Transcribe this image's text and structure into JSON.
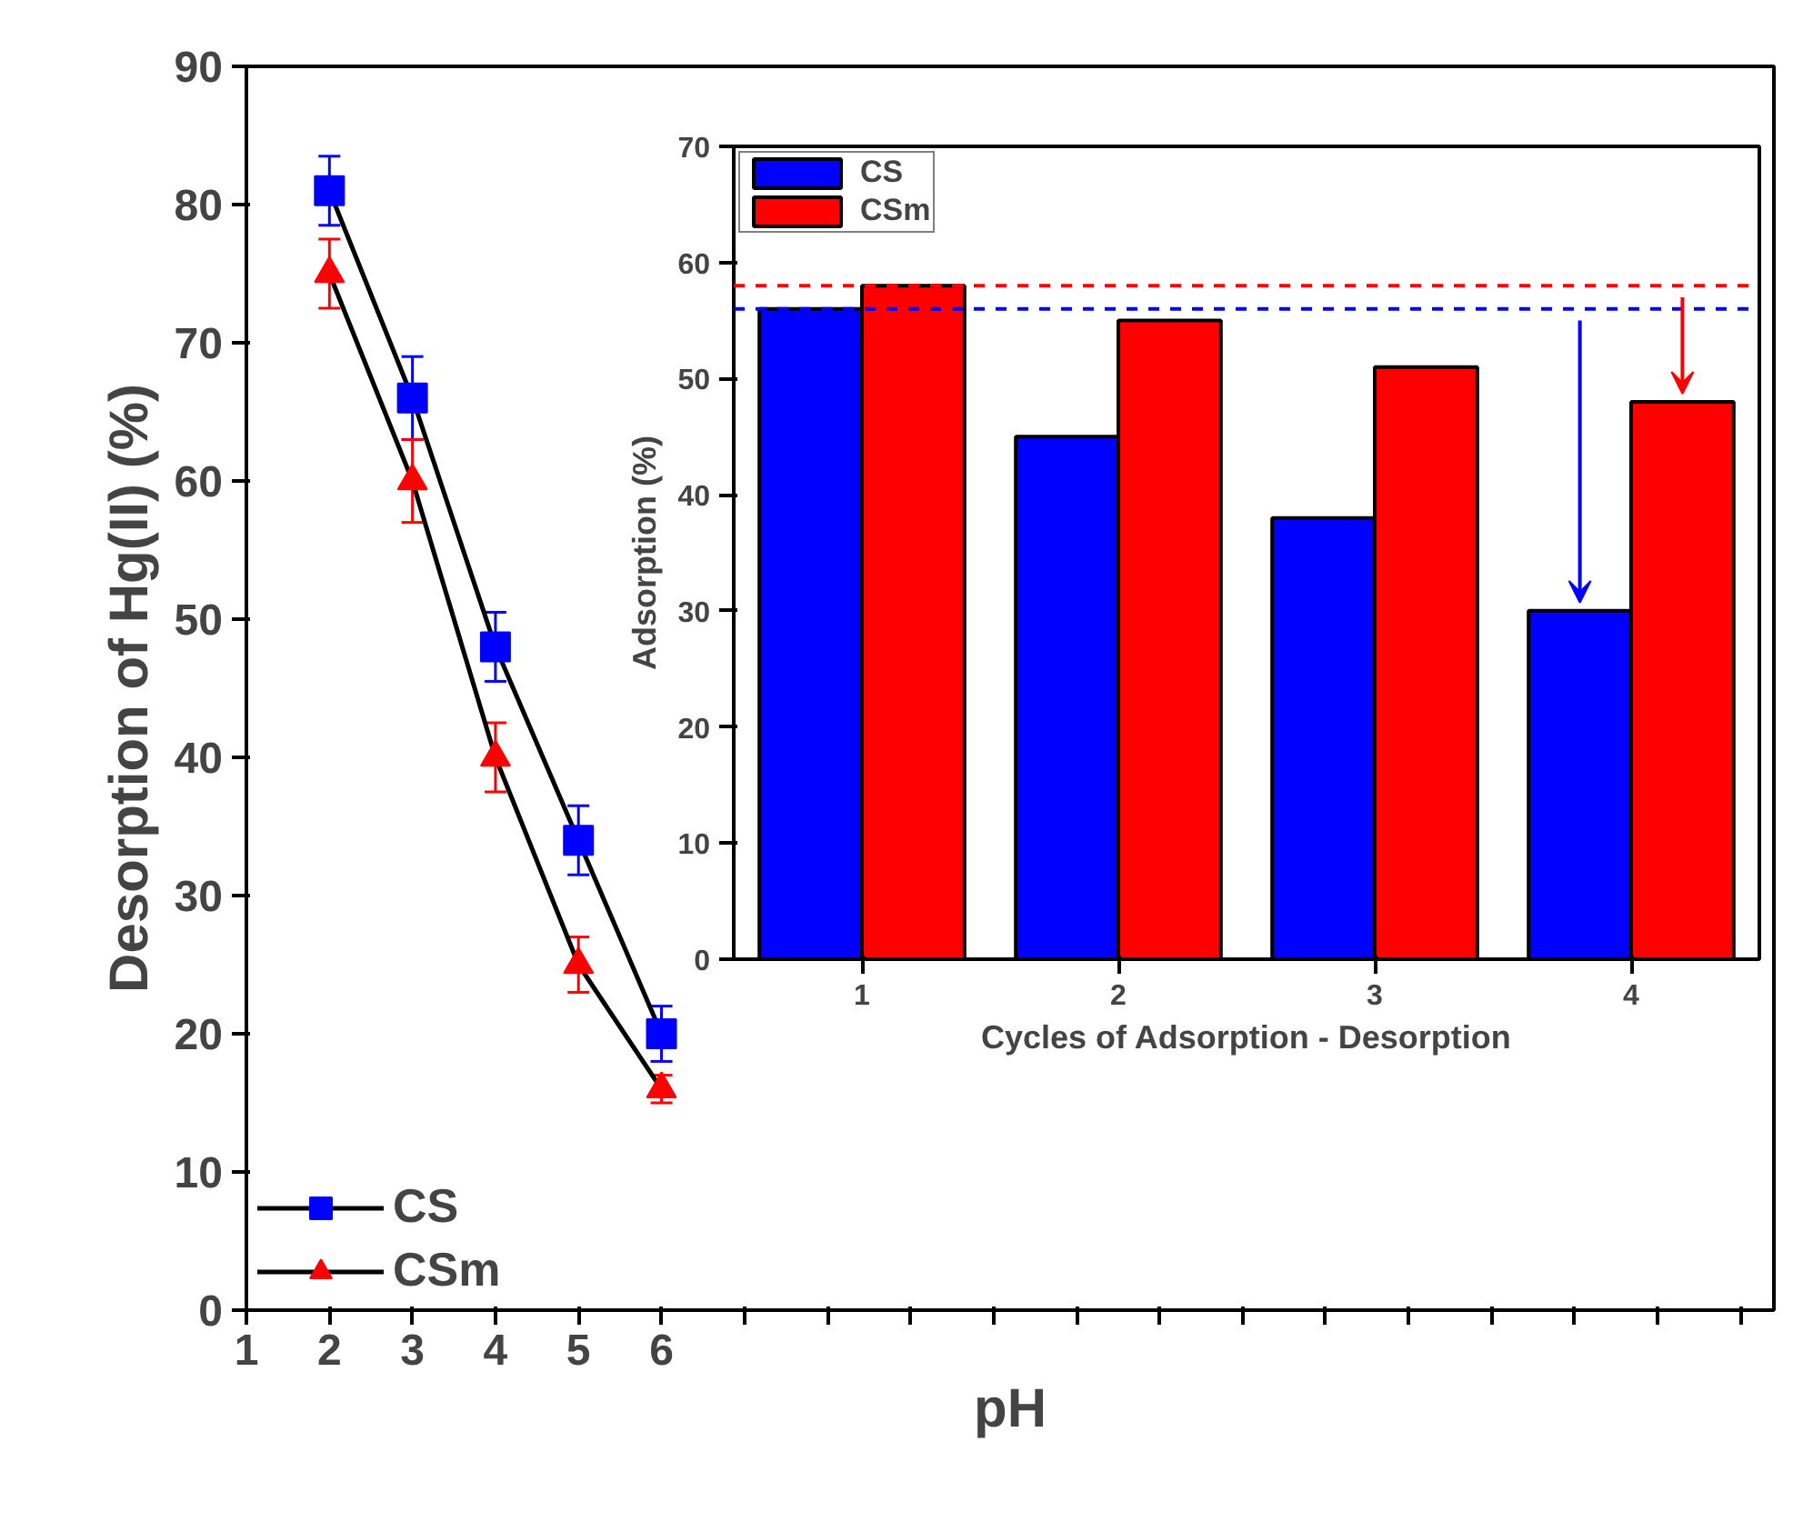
{
  "chart_data": [
    {
      "type": "line",
      "xlabel": "pH",
      "ylabel": "Desorption of Hg(II) (%)",
      "x": [
        2,
        3,
        4,
        5,
        6
      ],
      "xlim": [
        1,
        19.4
      ],
      "xticks": [
        1,
        2,
        3,
        4,
        5,
        6,
        {
          "value": 7,
          "label": null
        },
        {
          "value": 8,
          "label": null
        },
        {
          "value": 9,
          "label": null
        },
        {
          "value": 10,
          "label": null
        },
        {
          "value": 11,
          "label": null
        },
        {
          "value": 12,
          "label": null
        },
        {
          "value": 13,
          "label": null
        },
        {
          "value": 14,
          "label": null
        },
        {
          "value": 15,
          "label": null
        },
        {
          "value": 16,
          "label": null
        },
        {
          "value": 17,
          "label": null
        },
        {
          "value": 18,
          "label": null
        },
        {
          "value": 19,
          "label": null
        }
      ],
      "ylim": [
        0,
        90
      ],
      "yticks": [
        0,
        10,
        20,
        30,
        40,
        50,
        60,
        70,
        80,
        90
      ],
      "legend": "bottom left",
      "series": [
        {
          "name": "CS",
          "color": "#0000ff",
          "marker": "square",
          "values": [
            81,
            66,
            48,
            34,
            20
          ],
          "errors": [
            2.5,
            3,
            2.5,
            2.5,
            2
          ]
        },
        {
          "name": "CSm",
          "color": "#ff0000",
          "marker": "triangle",
          "values": [
            75,
            60,
            40,
            25,
            16
          ],
          "errors": [
            2.5,
            3,
            2.5,
            2,
            1
          ]
        }
      ]
    },
    {
      "type": "bar",
      "xlabel": "Cycles of Adsorption - Desorption",
      "ylabel": "Adsorption (%)",
      "categories": [
        "1",
        "2",
        "3",
        "4"
      ],
      "ylim": [
        0,
        70
      ],
      "yticks": [
        0,
        10,
        20,
        30,
        40,
        50,
        60,
        70
      ],
      "legend": "top left",
      "series": [
        {
          "name": "CS",
          "color": "#0000ff",
          "values": [
            56,
            45,
            38,
            30
          ]
        },
        {
          "name": "CSm",
          "color": "#ff0000",
          "values": [
            58,
            55,
            51,
            48
          ]
        }
      ],
      "ref_lines": [
        {
          "axis": "y",
          "value": 56,
          "color": "#0000ff",
          "line_style": "dashed"
        },
        {
          "axis": "y",
          "value": 58,
          "color": "#ff0000",
          "line_style": "dashed"
        }
      ]
    }
  ]
}
